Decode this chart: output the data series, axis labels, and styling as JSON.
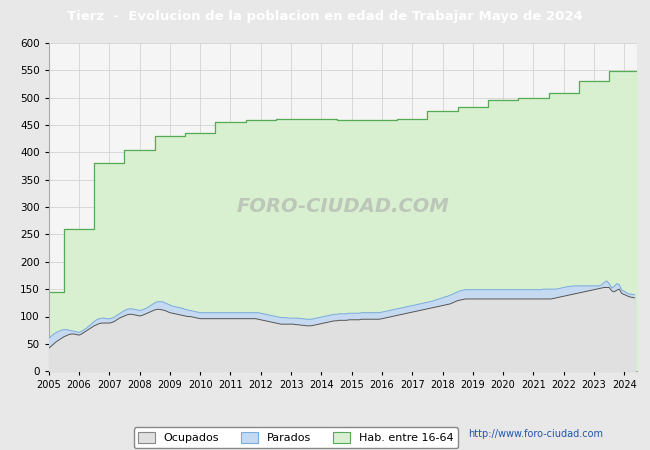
{
  "title": "Tierz  -  Evolucion de la poblacion en edad de Trabajar Mayo de 2024",
  "title_color": "#ffffff",
  "title_bg_color": "#4472c4",
  "ylim": [
    0,
    600
  ],
  "yticks": [
    0,
    50,
    100,
    150,
    200,
    250,
    300,
    350,
    400,
    450,
    500,
    550,
    600
  ],
  "xmin": 2005.0,
  "xmax": 2024.42,
  "bg_color": "#e8e8e8",
  "plot_bg_color": "#f5f5f5",
  "grid_color": "#cccccc",
  "watermark": "FORO-CIUDAD.COM",
  "url": "http://www.foro-ciudad.com",
  "legend_labels": [
    "Ocupados",
    "Parados",
    "Hab. entre 16-64"
  ],
  "ocupados_color": "#e0e0e0",
  "parados_fill_color": "#c5d9f0",
  "hab_fill_color": "#d8f0d0",
  "parados_line_color": "#7aaddb",
  "ocupados_line_color": "#555555",
  "hab_line_color": "#55aa55",
  "hab_step_x": [
    2005.0,
    2005.5,
    2005.5,
    2006.0,
    2006.5,
    2006.5,
    2007.0,
    2007.5,
    2007.5,
    2008.0,
    2008.5,
    2008.5,
    2009.0,
    2009.5,
    2009.5,
    2010.0,
    2010.5,
    2010.5,
    2011.0,
    2011.5,
    2011.5,
    2012.0,
    2012.5,
    2012.5,
    2013.0,
    2013.5,
    2013.5,
    2014.0,
    2014.5,
    2014.5,
    2015.0,
    2015.5,
    2015.5,
    2016.0,
    2016.5,
    2016.5,
    2017.0,
    2017.5,
    2017.5,
    2018.0,
    2018.5,
    2018.5,
    2019.0,
    2019.5,
    2019.5,
    2020.0,
    2020.5,
    2020.5,
    2021.0,
    2021.5,
    2021.5,
    2022.0,
    2022.5,
    2022.5,
    2023.0,
    2023.5,
    2023.5,
    2024.0,
    2024.42
  ],
  "hab_step_y": [
    145,
    145,
    260,
    260,
    260,
    380,
    380,
    380,
    405,
    405,
    405,
    430,
    430,
    430,
    435,
    435,
    435,
    455,
    455,
    455,
    458,
    458,
    458,
    460,
    460,
    460,
    460,
    460,
    460,
    458,
    458,
    458,
    458,
    458,
    458,
    460,
    460,
    460,
    475,
    475,
    475,
    482,
    482,
    482,
    495,
    495,
    495,
    500,
    500,
    500,
    508,
    508,
    508,
    530,
    530,
    530,
    548,
    548,
    548
  ],
  "x_monthly": [
    2005.0,
    2005.083,
    2005.167,
    2005.25,
    2005.333,
    2005.417,
    2005.5,
    2005.583,
    2005.667,
    2005.75,
    2005.833,
    2005.917,
    2006.0,
    2006.083,
    2006.167,
    2006.25,
    2006.333,
    2006.417,
    2006.5,
    2006.583,
    2006.667,
    2006.75,
    2006.833,
    2006.917,
    2007.0,
    2007.083,
    2007.167,
    2007.25,
    2007.333,
    2007.417,
    2007.5,
    2007.583,
    2007.667,
    2007.75,
    2007.833,
    2007.917,
    2008.0,
    2008.083,
    2008.167,
    2008.25,
    2008.333,
    2008.417,
    2008.5,
    2008.583,
    2008.667,
    2008.75,
    2008.833,
    2008.917,
    2009.0,
    2009.083,
    2009.167,
    2009.25,
    2009.333,
    2009.417,
    2009.5,
    2009.583,
    2009.667,
    2009.75,
    2009.833,
    2009.917,
    2010.0,
    2010.083,
    2010.167,
    2010.25,
    2010.333,
    2010.417,
    2010.5,
    2010.583,
    2010.667,
    2010.75,
    2010.833,
    2010.917,
    2011.0,
    2011.083,
    2011.167,
    2011.25,
    2011.333,
    2011.417,
    2011.5,
    2011.583,
    2011.667,
    2011.75,
    2011.833,
    2011.917,
    2012.0,
    2012.083,
    2012.167,
    2012.25,
    2012.333,
    2012.417,
    2012.5,
    2012.583,
    2012.667,
    2012.75,
    2012.833,
    2012.917,
    2013.0,
    2013.083,
    2013.167,
    2013.25,
    2013.333,
    2013.417,
    2013.5,
    2013.583,
    2013.667,
    2013.75,
    2013.833,
    2013.917,
    2014.0,
    2014.083,
    2014.167,
    2014.25,
    2014.333,
    2014.417,
    2014.5,
    2014.583,
    2014.667,
    2014.75,
    2014.833,
    2014.917,
    2015.0,
    2015.083,
    2015.167,
    2015.25,
    2015.333,
    2015.417,
    2015.5,
    2015.583,
    2015.667,
    2015.75,
    2015.833,
    2015.917,
    2016.0,
    2016.083,
    2016.167,
    2016.25,
    2016.333,
    2016.417,
    2016.5,
    2016.583,
    2016.667,
    2016.75,
    2016.833,
    2016.917,
    2017.0,
    2017.083,
    2017.167,
    2017.25,
    2017.333,
    2017.417,
    2017.5,
    2017.583,
    2017.667,
    2017.75,
    2017.833,
    2017.917,
    2018.0,
    2018.083,
    2018.167,
    2018.25,
    2018.333,
    2018.417,
    2018.5,
    2018.583,
    2018.667,
    2018.75,
    2018.833,
    2018.917,
    2019.0,
    2019.083,
    2019.167,
    2019.25,
    2019.333,
    2019.417,
    2019.5,
    2019.583,
    2019.667,
    2019.75,
    2019.833,
    2019.917,
    2020.0,
    2020.083,
    2020.167,
    2020.25,
    2020.333,
    2020.417,
    2020.5,
    2020.583,
    2020.667,
    2020.75,
    2020.833,
    2020.917,
    2021.0,
    2021.083,
    2021.167,
    2021.25,
    2021.333,
    2021.417,
    2021.5,
    2021.583,
    2021.667,
    2021.75,
    2021.833,
    2021.917,
    2022.0,
    2022.083,
    2022.167,
    2022.25,
    2022.333,
    2022.417,
    2022.5,
    2022.583,
    2022.667,
    2022.75,
    2022.833,
    2022.917,
    2023.0,
    2023.083,
    2023.167,
    2023.25,
    2023.333,
    2023.417,
    2023.5,
    2023.583,
    2023.667,
    2023.75,
    2023.833,
    2023.917,
    2024.0,
    2024.083,
    2024.167,
    2024.333
  ],
  "ocupados": [
    42,
    46,
    50,
    54,
    57,
    60,
    63,
    65,
    67,
    68,
    68,
    67,
    66,
    68,
    71,
    74,
    77,
    80,
    83,
    85,
    87,
    88,
    88,
    88,
    88,
    89,
    91,
    94,
    97,
    99,
    101,
    103,
    104,
    104,
    103,
    102,
    101,
    102,
    104,
    106,
    108,
    110,
    112,
    113,
    113,
    112,
    111,
    109,
    107,
    106,
    105,
    104,
    103,
    102,
    101,
    100,
    100,
    99,
    98,
    97,
    96,
    96,
    96,
    96,
    96,
    96,
    96,
    96,
    96,
    96,
    96,
    96,
    96,
    96,
    96,
    96,
    96,
    96,
    96,
    96,
    96,
    96,
    96,
    95,
    94,
    93,
    92,
    91,
    90,
    89,
    88,
    87,
    86,
    86,
    86,
    86,
    86,
    86,
    85,
    85,
    84,
    84,
    83,
    83,
    83,
    84,
    85,
    86,
    87,
    88,
    89,
    90,
    91,
    92,
    92,
    93,
    93,
    93,
    93,
    94,
    94,
    94,
    94,
    94,
    95,
    95,
    95,
    95,
    95,
    95,
    95,
    95,
    96,
    97,
    98,
    99,
    100,
    101,
    102,
    103,
    104,
    105,
    106,
    107,
    108,
    109,
    110,
    111,
    112,
    113,
    114,
    115,
    116,
    117,
    118,
    119,
    120,
    121,
    122,
    123,
    125,
    127,
    129,
    130,
    131,
    132,
    132,
    132,
    132,
    132,
    132,
    132,
    132,
    132,
    132,
    132,
    132,
    132,
    132,
    132,
    132,
    132,
    132,
    132,
    132,
    132,
    132,
    132,
    132,
    132,
    132,
    132,
    132,
    132,
    132,
    132,
    132,
    132,
    132,
    132,
    133,
    134,
    135,
    136,
    137,
    138,
    139,
    140,
    141,
    142,
    143,
    144,
    145,
    146,
    147,
    148,
    149,
    150,
    151,
    152,
    153,
    153,
    153,
    147,
    145,
    148,
    150,
    142,
    140,
    138,
    136,
    134
  ],
  "parados": [
    60,
    64,
    68,
    71,
    73,
    75,
    76,
    76,
    75,
    74,
    73,
    72,
    71,
    73,
    76,
    79,
    83,
    87,
    91,
    94,
    96,
    97,
    97,
    96,
    96,
    97,
    99,
    102,
    105,
    108,
    111,
    113,
    114,
    114,
    113,
    112,
    111,
    112,
    114,
    116,
    119,
    122,
    125,
    127,
    127,
    127,
    125,
    123,
    121,
    119,
    118,
    117,
    116,
    115,
    113,
    112,
    111,
    110,
    109,
    108,
    107,
    107,
    107,
    107,
    107,
    107,
    107,
    107,
    107,
    107,
    107,
    107,
    107,
    107,
    107,
    107,
    107,
    107,
    107,
    107,
    107,
    107,
    107,
    107,
    106,
    105,
    104,
    103,
    102,
    101,
    100,
    99,
    98,
    98,
    98,
    97,
    97,
    97,
    97,
    97,
    96,
    96,
    95,
    95,
    95,
    96,
    97,
    98,
    99,
    100,
    101,
    102,
    103,
    104,
    104,
    105,
    105,
    105,
    105,
    106,
    106,
    106,
    106,
    106,
    107,
    107,
    107,
    107,
    107,
    107,
    107,
    107,
    108,
    109,
    110,
    111,
    112,
    113,
    114,
    115,
    116,
    117,
    118,
    119,
    120,
    121,
    122,
    123,
    124,
    125,
    126,
    127,
    128,
    130,
    131,
    133,
    134,
    136,
    137,
    139,
    141,
    143,
    145,
    147,
    148,
    149,
    149,
    149,
    149,
    149,
    149,
    149,
    149,
    149,
    149,
    149,
    149,
    149,
    149,
    149,
    149,
    149,
    149,
    149,
    149,
    149,
    149,
    149,
    149,
    149,
    149,
    149,
    149,
    149,
    149,
    149,
    150,
    150,
    150,
    150,
    150,
    150,
    151,
    152,
    153,
    154,
    155,
    155,
    156,
    156,
    156,
    156,
    156,
    156,
    156,
    156,
    156,
    156,
    156,
    158,
    162,
    165,
    160,
    152,
    155,
    160,
    158,
    148,
    146,
    143,
    141,
    140
  ]
}
